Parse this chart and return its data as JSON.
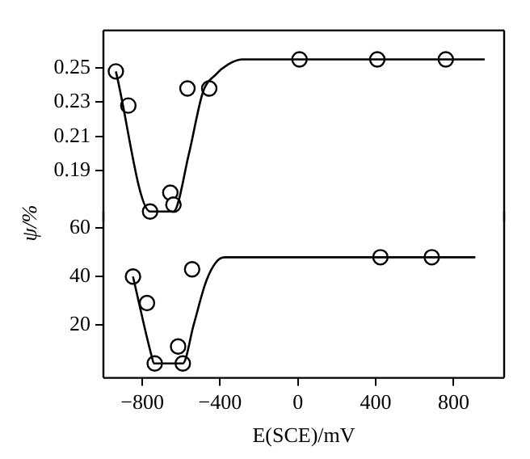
{
  "chart_data": [
    {
      "type": "scatter",
      "ylabel": "ψ/%",
      "xlim": [
        -1000,
        1060
      ],
      "ylim": [
        0.16,
        0.272
      ],
      "yticks": [
        0.19,
        0.21,
        0.23,
        0.25
      ],
      "tick_labels": "y",
      "grid": false,
      "marker": "circle",
      "series": [
        {
          "type": "line",
          "color": "#000000",
          "marker": "none",
          "x": [
            -936,
            -760,
            -640,
            -560,
            -488,
            -424,
            -360,
            -288,
            960
          ],
          "values": [
            0.248,
            0.166,
            0.166,
            0.2,
            0.236,
            0.246,
            0.252,
            0.255,
            0.255
          ]
        },
        {
          "color": "#000000",
          "x": [
            -936,
            -872,
            -760,
            -656,
            -640,
            -568,
            -456,
            8,
            408,
            760
          ],
          "values": [
            0.248,
            0.228,
            0.166,
            0.177,
            0.17,
            0.238,
            0.238,
            0.255,
            0.255,
            0.255
          ]
        }
      ]
    },
    {
      "type": "scatter",
      "xlabel": "E(SCE)/mV",
      "xlim": [
        -1000,
        1060
      ],
      "ylim": [
        -2,
        67
      ],
      "xticks": [
        -800,
        -400,
        0,
        400,
        800
      ],
      "yticks": [
        20,
        40,
        60
      ],
      "grid": false,
      "marker": "circle",
      "series": [
        {
          "type": "line",
          "color": "#000000",
          "marker": "none",
          "x": [
            -848,
            -752,
            -740,
            -592,
            -536,
            -472,
            -420,
            -376,
            912
          ],
          "values": [
            40,
            7,
            4,
            4,
            20,
            38,
            46,
            48,
            48
          ]
        },
        {
          "color": "#000000",
          "x": [
            -848,
            -776,
            -736,
            -616,
            -592,
            -544,
            424,
            688
          ],
          "values": [
            40,
            29,
            4,
            11,
            4,
            43,
            48,
            48
          ]
        }
      ]
    }
  ]
}
